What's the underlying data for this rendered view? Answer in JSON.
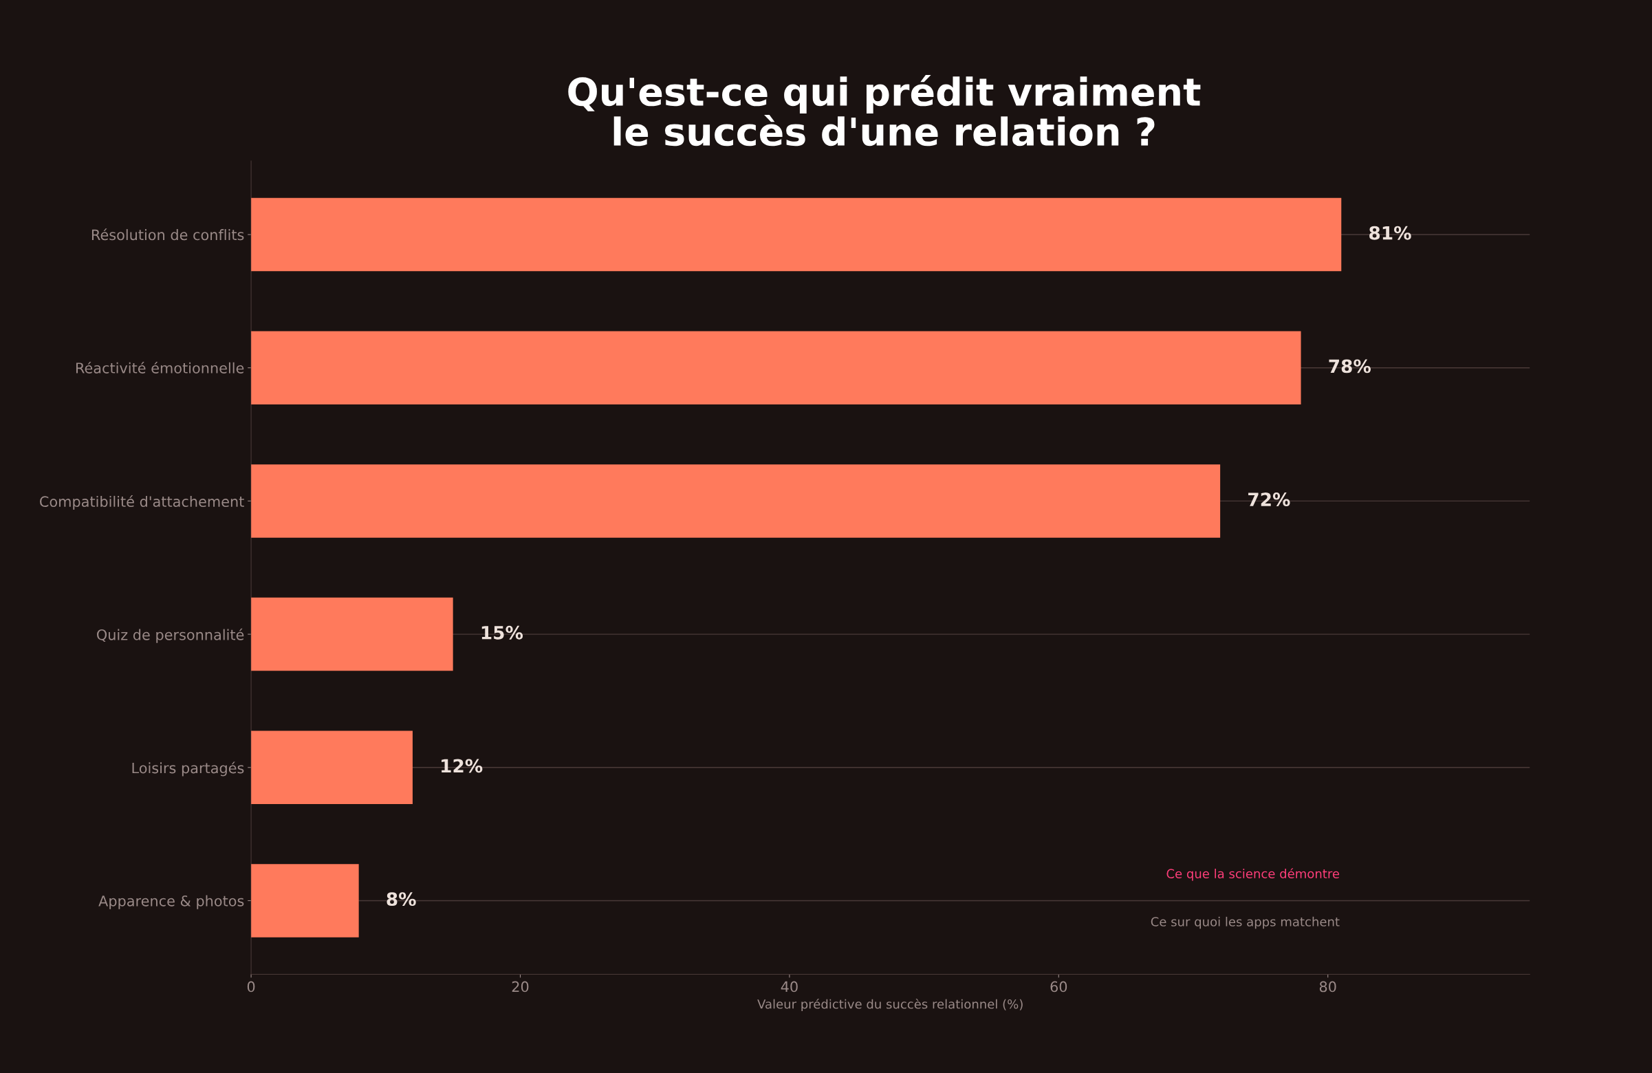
{
  "chart_data": {
    "type": "bar",
    "orientation": "horizontal",
    "title": "Qu'est-ce qui prédit vraiment\nle succès d'une relation ?",
    "xlabel": "Valeur prédictive du succès relationnel (%)",
    "categories": [
      "Résolution de conflits",
      "Réactivité émotionnelle",
      "Compatibilité d'attachement",
      "Quiz de personnalité",
      "Loisirs partagés",
      "Apparence & photos"
    ],
    "values": [
      81,
      78,
      72,
      15,
      12,
      8
    ],
    "value_labels": [
      "81%",
      "78%",
      "72%",
      "15%",
      "12%",
      "8%"
    ],
    "color": "#ff7a5c",
    "xlim": [
      0,
      95
    ],
    "xticks": [
      0,
      20,
      40,
      60,
      80
    ],
    "grid": "y",
    "annotations": [
      "Ce que la science démontre",
      "Ce sur quoi les apps matchent"
    ]
  }
}
